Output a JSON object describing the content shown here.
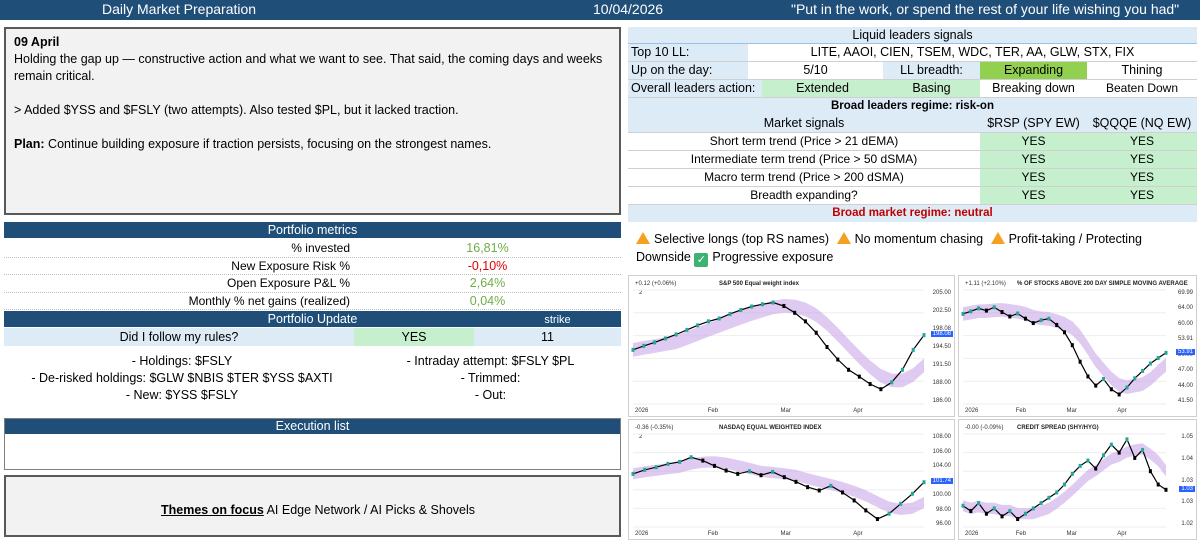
{
  "header": {
    "title": "Daily Market Preparation",
    "date": "10/04/2026",
    "quote": "\"Put in the work, or spend the rest of your life wishing you had\""
  },
  "journal": {
    "date": "09 April",
    "line1": "Holding the gap up — constructive action and what we want to see. That said, the coming days and weeks remain critical.",
    "line2": "> Added $YSS and $FSLY (two attempts). Also tested $PL, but it lacked traction.",
    "plan_label": "Plan:",
    "plan_text": " Continue building exposure if traction persists, focusing on the strongest names."
  },
  "portfolio_metrics": {
    "header": "Portfolio metrics",
    "rows": [
      {
        "label": "% invested",
        "value": "16,81%"
      },
      {
        "label": "New Exposure Risk %",
        "value": "-0,10%"
      },
      {
        "label": "Open Exposure P&L %",
        "value": "2,64%"
      },
      {
        "label": "Monthly % net gains (realized)",
        "value": "0,04%"
      }
    ]
  },
  "portfolio_update": {
    "header": "Portfolio Update",
    "strike_label": "strike",
    "question": "Did I follow my rules?",
    "answer": "YES",
    "strike": "11",
    "holdings": "- Holdings: $FSLY",
    "derisked": "- De-risked holdings: $GLW $NBIS $TER $YSS $AXTI",
    "new": "- New: $YSS $FSLY",
    "intraday": "- Intraday attempt: $FSLY $PL",
    "trimmed": "- Trimmed:",
    "out": "- Out:"
  },
  "execution": {
    "header": "Execution list"
  },
  "themes": {
    "label": "Themes on focus",
    "text": " AI Edge Network / AI Picks & Shovels"
  },
  "liquid_leaders": {
    "header": "Liquid leaders signals",
    "top10_label": "Top 10 LL:",
    "top10_value": "LITE, AAOI, CIEN, TSEM, WDC, TER, AA, GLW, STX, FIX",
    "up_label": "Up on the day:",
    "up_value": "5/10",
    "breadth_label": "LL breadth:",
    "breadth_a": "Expanding",
    "breadth_b": "Thining",
    "action_label": "Overall leaders action:",
    "action_1": "Extended",
    "action_2": "Basing",
    "action_3": "Breaking down",
    "action_4": "Beaten Down",
    "regime": "Broad leaders regime: risk-on"
  },
  "market_signals": {
    "header": "Market signals",
    "col1": "$RSP (SPY EW)",
    "col2": "$QQQE (NQ EW)",
    "rows": [
      {
        "label": "Short term trend (Price > 21 dEMA)",
        "v1": "YES",
        "v2": "YES"
      },
      {
        "label": "Intermediate term trend (Price > 50 dSMA)",
        "v1": "YES",
        "v2": "YES"
      },
      {
        "label": "Macro term trend (Price > 200 dSMA)",
        "v1": "YES",
        "v2": "YES"
      },
      {
        "label": "Breadth expanding?",
        "v1": "YES",
        "v2": "YES"
      }
    ],
    "regime": "Broad market regime: neutral"
  },
  "legend": {
    "item1": "Selective longs (top RS names)",
    "item2": "No momentum chasing",
    "item3": "Profit-taking / Protecting",
    "item4": "Downside",
    "item5": "Progressive exposure"
  },
  "colors": {
    "header_bg": "#1f4e79",
    "light_blue": "#ddebf7",
    "light_green": "#c6efce",
    "bright_green": "#92d050",
    "neg_red": "#e00000",
    "pos_green": "#70ad47",
    "regime_red": "#c00000"
  },
  "charts": [
    {
      "title": "S&P 500 Equal weight index",
      "legend": "+0.12 (+0.06%)",
      "legend2": "2",
      "yticks": [
        "205.00",
        "202.50",
        "198.08",
        "194.50",
        "191.50",
        "188.00",
        "186.00"
      ],
      "price_tag": "198.08",
      "xticks": [
        "2026",
        "Feb",
        "Mar",
        "Apr"
      ],
      "chart_data": {
        "type": "line",
        "series": [
          {
            "name": "price",
            "values": [
              195.5,
              196.2,
              196.8,
              197.5,
              198.2,
              199.0,
              199.8,
              200.5,
              201.0,
              201.8,
              202.5,
              203.1,
              203.5,
              203.8,
              203.2,
              202.0,
              200.5,
              198.5,
              196.0,
              193.8,
              192.0,
              190.8,
              189.5,
              188.6,
              189.8,
              192.0,
              195.5,
              198.08
            ]
          }
        ],
        "ylim": [
          186,
          206
        ]
      }
    },
    {
      "title": "% OF STOCKS ABOVE 200 DAY SIMPLE MOVING AVERAGE",
      "legend": "+1.11 (+2.10%)",
      "yticks": [
        "69.99",
        "64.00",
        "60.00",
        "53.91",
        "50.00",
        "47.00",
        "44.00",
        "41.50"
      ],
      "price_tag": "53.91",
      "xticks": [
        "2026",
        "Feb",
        "Mar",
        "Apr"
      ],
      "chart_data": {
        "type": "line",
        "series": [
          {
            "name": "pct",
            "values": [
              64.5,
              65.2,
              66.0,
              65.4,
              66.3,
              65.0,
              63.8,
              64.6,
              63.2,
              62.0,
              62.8,
              63.2,
              61.5,
              59.5,
              56.0,
              51.5,
              47.5,
              45.0,
              46.8,
              44.0,
              42.6,
              44.5,
              47.0,
              49.0,
              51.0,
              52.5,
              53.91
            ]
          }
        ],
        "ylim": [
          40,
          71
        ]
      }
    },
    {
      "title": "NASDAQ EQUAL WEIGHTED INDEX",
      "legend": "-0.36 (-0.35%)",
      "legend2": "2",
      "yticks": [
        "108.00",
        "106.00",
        "104.00",
        "101.74",
        "100.00",
        "98.00",
        "96.00"
      ],
      "price_tag": "101.74",
      "xticks": [
        "2026",
        "Feb",
        "Mar",
        "Apr"
      ],
      "chart_data": {
        "type": "line",
        "series": [
          {
            "name": "price",
            "values": [
              103.0,
              103.6,
              104.0,
              104.5,
              104.8,
              105.5,
              105.0,
              104.2,
              103.5,
              103.0,
              103.4,
              102.8,
              103.3,
              102.5,
              101.8,
              101.0,
              100.5,
              101.2,
              100.2,
              99.0,
              97.5,
              96.2,
              97.0,
              98.5,
              100.0,
              101.74
            ]
          }
        ],
        "ylim": [
          95,
          109
        ]
      }
    },
    {
      "title": "CREDIT SPREAD (SHY/HYG)",
      "legend": "-0.00 (-0.09%)",
      "yticks": [
        "1.05",
        "1.04",
        "1.03",
        "1.03",
        "1.02"
      ],
      "price_tag": "1.03",
      "xticks": [
        "2026",
        "Feb",
        "Mar",
        "Apr"
      ],
      "chart_data": {
        "type": "line",
        "series": [
          {
            "name": "ratio",
            "values": [
              1.023,
              1.021,
              1.024,
              1.02,
              1.022,
              1.019,
              1.021,
              1.018,
              1.02,
              1.022,
              1.024,
              1.026,
              1.028,
              1.031,
              1.035,
              1.038,
              1.04,
              1.037,
              1.042,
              1.046,
              1.043,
              1.048,
              1.041,
              1.044,
              1.036,
              1.031,
              1.029
            ]
          }
        ],
        "ylim": [
          1.015,
          1.05
        ]
      }
    }
  ]
}
